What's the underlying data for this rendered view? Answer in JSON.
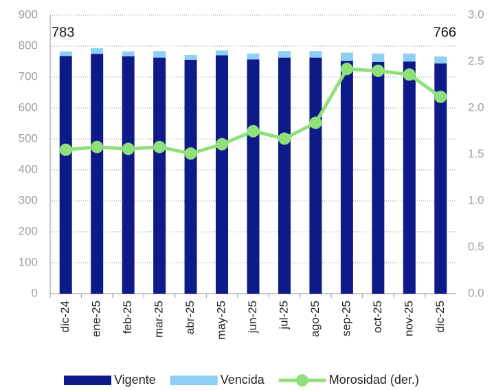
{
  "chart_data": {
    "type": "bar",
    "stacked": true,
    "categories": [
      "dic-24",
      "ene-25",
      "feb-25",
      "mar-25",
      "abr-25",
      "may-25",
      "jun-25",
      "jul-25",
      "ago-25",
      "sep-25",
      "oct-25",
      "nov-25",
      "dic-25"
    ],
    "series": [
      {
        "name": "Vigente",
        "type": "bar",
        "color": "#0d1a87",
        "values": [
          768,
          775,
          767,
          763,
          756,
          770,
          757,
          763,
          763,
          752,
          749,
          750,
          744
        ]
      },
      {
        "name": "Vencida",
        "type": "bar",
        "color": "#8ecff3",
        "values": [
          15,
          18,
          16,
          21,
          15,
          16,
          19,
          21,
          21,
          27,
          27,
          26,
          22
        ]
      },
      {
        "name": "Morosidad (der.)",
        "type": "line",
        "axis": "y2",
        "color": "#8fe07a",
        "values": [
          1.55,
          1.58,
          1.56,
          1.58,
          1.51,
          1.61,
          1.75,
          1.67,
          1.84,
          2.42,
          2.4,
          2.36,
          2.12
        ]
      }
    ],
    "annotations": [
      "783",
      "766"
    ],
    "ylim": [
      0,
      900
    ],
    "yticks": [
      0,
      100,
      200,
      300,
      400,
      500,
      600,
      700,
      800,
      900
    ],
    "y2lim": [
      0,
      3
    ],
    "y2ticks": [
      {
        "value": 0,
        "label": "0.0"
      },
      {
        "value": 0.5,
        "label": "0.5"
      },
      {
        "value": 1,
        "label": "1.0"
      },
      {
        "value": 1.5,
        "label": "1.5"
      },
      {
        "value": 2,
        "label": "2.0"
      },
      {
        "value": 2.5,
        "label": "2.5"
      },
      {
        "value": 3,
        "label": "3.0"
      }
    ],
    "grid": true,
    "legend": "bottom"
  }
}
